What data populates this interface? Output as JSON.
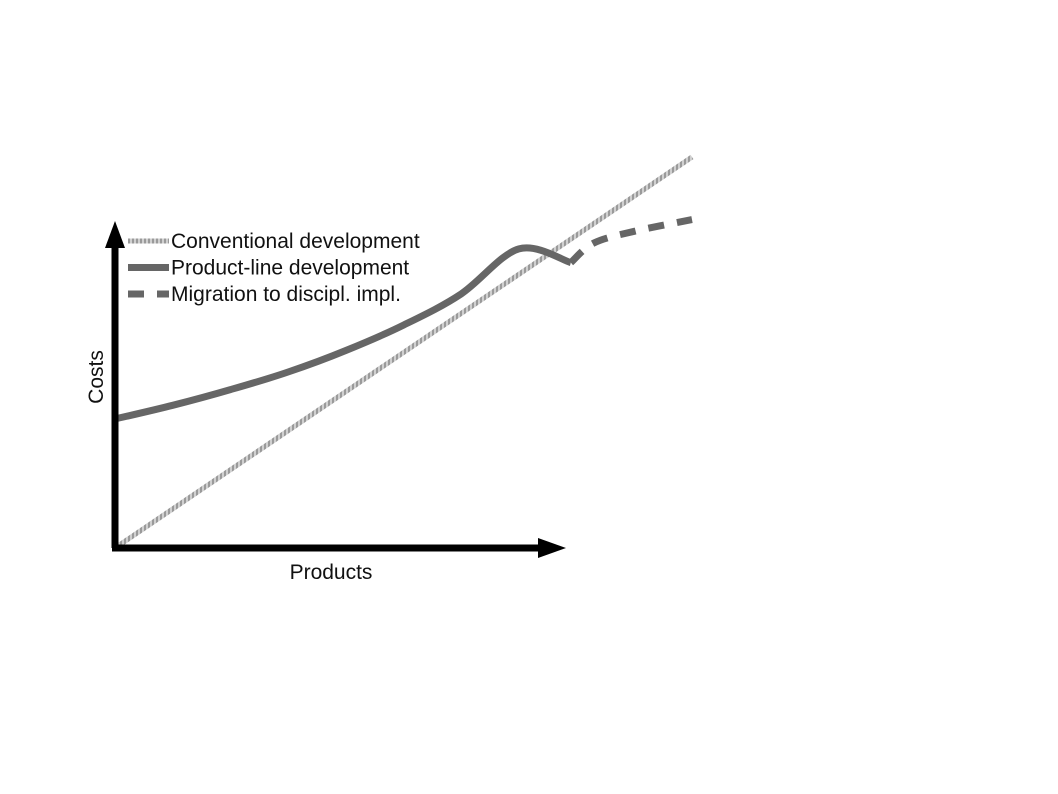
{
  "chart_data": {
    "type": "line",
    "title": "",
    "xlabel": "Products",
    "ylabel": "Costs",
    "x_ticks": false,
    "y_ticks": false,
    "grid": false,
    "legend_position": "top-left",
    "xlim": [
      0,
      10
    ],
    "ylim": [
      0,
      10
    ],
    "series": [
      {
        "name": "Conventional development",
        "style": "dotted-thin",
        "color": "#a8a8a8",
        "x": [
          0,
          10
        ],
        "y": [
          0,
          10
        ]
      },
      {
        "name": "Product-line development",
        "style": "solid",
        "color": "#666666",
        "x": [
          0,
          1,
          2,
          3,
          4,
          5,
          6,
          7,
          7.9
        ],
        "y": [
          3.3,
          3.65,
          4.05,
          4.5,
          5.05,
          5.7,
          6.5,
          7.65,
          7.3
        ]
      },
      {
        "name": "Migration to discipl. impl.",
        "style": "dashed",
        "color": "#666666",
        "x": [
          7.9,
          8.3,
          9.0,
          10.0
        ],
        "y": [
          7.3,
          7.8,
          8.1,
          8.4
        ]
      }
    ]
  }
}
